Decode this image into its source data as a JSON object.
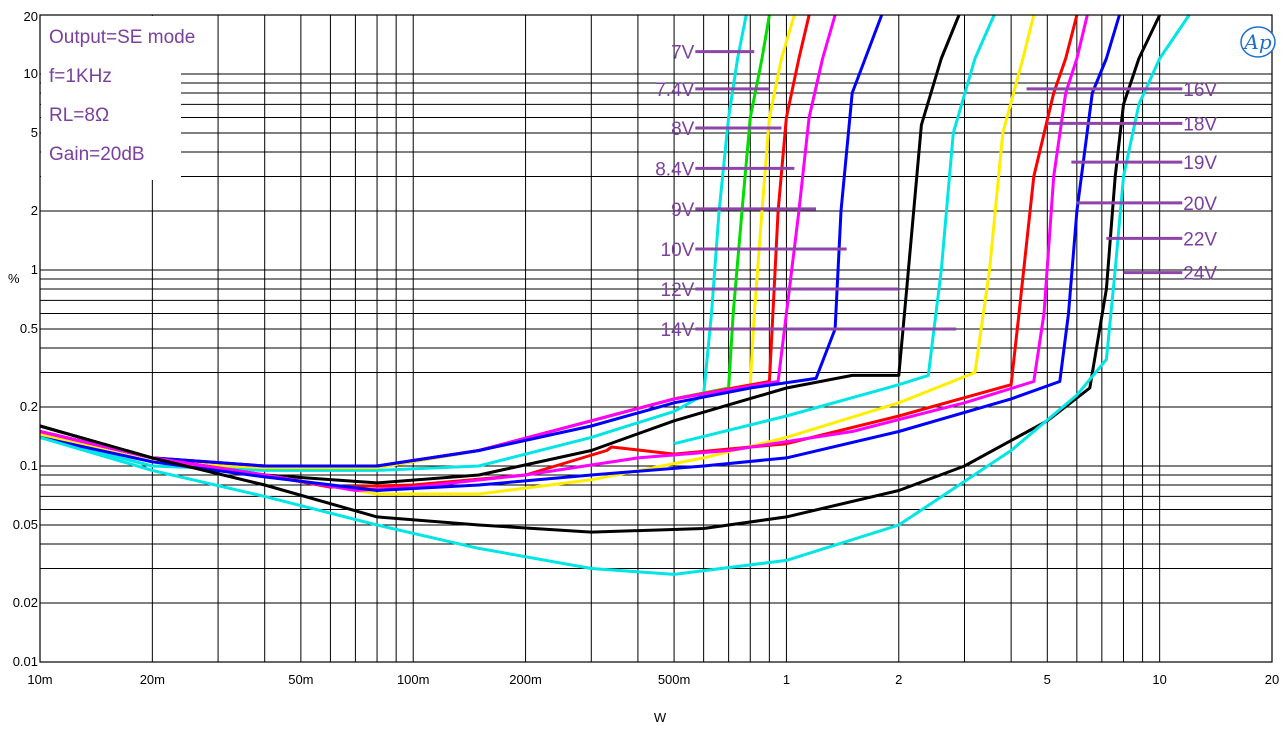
{
  "chart_data": {
    "type": "line",
    "x_scale": "log",
    "y_scale": "log",
    "xlim": [
      0.01,
      20
    ],
    "ylim": [
      0.01,
      20
    ],
    "xlabel": "W",
    "ylabel": "%",
    "grid": true,
    "x_ticks": [
      {
        "v": 0.01,
        "label": "10m"
      },
      {
        "v": 0.02,
        "label": "20m"
      },
      {
        "v": 0.05,
        "label": "50m"
      },
      {
        "v": 0.1,
        "label": "100m"
      },
      {
        "v": 0.2,
        "label": "200m"
      },
      {
        "v": 0.5,
        "label": "500m"
      },
      {
        "v": 1,
        "label": "1"
      },
      {
        "v": 2,
        "label": "2"
      },
      {
        "v": 5,
        "label": "5"
      },
      {
        "v": 10,
        "label": "10"
      },
      {
        "v": 20,
        "label": "20"
      }
    ],
    "y_ticks": [
      {
        "v": 0.01,
        "label": "0.01"
      },
      {
        "v": 0.02,
        "label": "0.02"
      },
      {
        "v": 0.05,
        "label": "0.05"
      },
      {
        "v": 0.1,
        "label": "0.1"
      },
      {
        "v": 0.2,
        "label": "0.2"
      },
      {
        "v": 0.5,
        "label": "0.5"
      },
      {
        "v": 1,
        "label": "1"
      },
      {
        "v": 2,
        "label": "2"
      },
      {
        "v": 5,
        "label": "5"
      },
      {
        "v": 10,
        "label": "10"
      },
      {
        "v": 20,
        "label": "20"
      }
    ],
    "annotations": [
      "Output=SE mode",
      "f=1KHz",
      "RL=8Ω",
      "Gain=20dB"
    ],
    "logo_text": "Ap",
    "voltage_labels": [
      {
        "label": "7V",
        "side": "left",
        "y": 13.0,
        "x_from": 0.57,
        "x_to": 0.82
      },
      {
        "label": "7.4V",
        "side": "left",
        "y": 8.4,
        "x_from": 0.57,
        "x_to": 0.9
      },
      {
        "label": "8V",
        "side": "left",
        "y": 5.3,
        "x_from": 0.57,
        "x_to": 0.97
      },
      {
        "label": "8.4V",
        "side": "left",
        "y": 3.3,
        "x_from": 0.57,
        "x_to": 1.05
      },
      {
        "label": "9V",
        "side": "left",
        "y": 2.05,
        "x_from": 0.57,
        "x_to": 1.2
      },
      {
        "label": "10V",
        "side": "left",
        "y": 1.28,
        "x_from": 0.57,
        "x_to": 1.45
      },
      {
        "label": "12V",
        "side": "left",
        "y": 0.8,
        "x_from": 0.57,
        "x_to": 2.0
      },
      {
        "label": "14V",
        "side": "left",
        "y": 0.5,
        "x_from": 0.57,
        "x_to": 2.85
      },
      {
        "label": "16V",
        "side": "right",
        "y": 8.4,
        "x_from": 4.4,
        "x_to": 11.5
      },
      {
        "label": "18V",
        "side": "right",
        "y": 5.6,
        "x_from": 5.0,
        "x_to": 11.5
      },
      {
        "label": "19V",
        "side": "right",
        "y": 3.55,
        "x_from": 5.8,
        "x_to": 11.5
      },
      {
        "label": "20V",
        "side": "right",
        "y": 2.2,
        "x_from": 6.0,
        "x_to": 11.5
      },
      {
        "label": "22V",
        "side": "right",
        "y": 1.45,
        "x_from": 7.2,
        "x_to": 11.5
      },
      {
        "label": "24V",
        "side": "right",
        "y": 0.97,
        "x_from": 8.0,
        "x_to": 11.5
      }
    ],
    "series": [
      {
        "color": "#00e5e5",
        "points": [
          [
            0.01,
            0.14
          ],
          [
            0.02,
            0.1
          ],
          [
            0.04,
            0.095
          ],
          [
            0.08,
            0.095
          ],
          [
            0.15,
            0.1
          ],
          [
            0.3,
            0.14
          ],
          [
            0.5,
            0.19
          ],
          [
            0.6,
            0.23
          ],
          [
            0.63,
            0.6
          ],
          [
            0.66,
            2
          ],
          [
            0.7,
            6
          ],
          [
            0.74,
            12
          ],
          [
            0.78,
            20
          ]
        ]
      },
      {
        "color": "#00dd00",
        "points": [
          [
            0.01,
            0.145
          ],
          [
            0.02,
            0.105
          ],
          [
            0.04,
            0.098
          ],
          [
            0.08,
            0.098
          ],
          [
            0.15,
            0.12
          ],
          [
            0.3,
            0.17
          ],
          [
            0.5,
            0.22
          ],
          [
            0.7,
            0.25
          ],
          [
            0.72,
            0.6
          ],
          [
            0.76,
            2
          ],
          [
            0.8,
            6
          ],
          [
            0.86,
            12
          ],
          [
            0.9,
            20
          ]
        ]
      },
      {
        "color": "#ffee00",
        "points": [
          [
            0.01,
            0.145
          ],
          [
            0.02,
            0.105
          ],
          [
            0.04,
            0.098
          ],
          [
            0.08,
            0.098
          ],
          [
            0.15,
            0.12
          ],
          [
            0.3,
            0.17
          ],
          [
            0.5,
            0.22
          ],
          [
            0.8,
            0.26
          ],
          [
            0.82,
            0.6
          ],
          [
            0.86,
            2
          ],
          [
            0.9,
            6
          ],
          [
            0.97,
            12
          ],
          [
            1.05,
            20
          ]
        ]
      },
      {
        "color": "#ff0000",
        "points": [
          [
            0.01,
            0.15
          ],
          [
            0.02,
            0.11
          ],
          [
            0.04,
            0.1
          ],
          [
            0.08,
            0.1
          ],
          [
            0.15,
            0.12
          ],
          [
            0.3,
            0.17
          ],
          [
            0.5,
            0.22
          ],
          [
            0.9,
            0.27
          ],
          [
            0.92,
            0.6
          ],
          [
            0.95,
            2
          ],
          [
            1.0,
            6
          ],
          [
            1.08,
            12
          ],
          [
            1.15,
            20
          ]
        ]
      },
      {
        "color": "#ff00ff",
        "points": [
          [
            0.01,
            0.15
          ],
          [
            0.02,
            0.11
          ],
          [
            0.04,
            0.1
          ],
          [
            0.08,
            0.1
          ],
          [
            0.15,
            0.12
          ],
          [
            0.3,
            0.17
          ],
          [
            0.5,
            0.22
          ],
          [
            0.95,
            0.27
          ],
          [
            1.0,
            0.6
          ],
          [
            1.08,
            2
          ],
          [
            1.15,
            6
          ],
          [
            1.25,
            12
          ],
          [
            1.35,
            20
          ]
        ]
      },
      {
        "color": "#0000ff",
        "points": [
          [
            0.01,
            0.15
          ],
          [
            0.02,
            0.11
          ],
          [
            0.04,
            0.1
          ],
          [
            0.08,
            0.1
          ],
          [
            0.15,
            0.12
          ],
          [
            0.3,
            0.16
          ],
          [
            0.5,
            0.21
          ],
          [
            0.8,
            0.25
          ],
          [
            1.2,
            0.28
          ],
          [
            1.35,
            0.5
          ],
          [
            1.4,
            2
          ],
          [
            1.5,
            8
          ],
          [
            1.8,
            20
          ]
        ]
      },
      {
        "color": "#000000",
        "points": [
          [
            0.01,
            0.16
          ],
          [
            0.02,
            0.11
          ],
          [
            0.04,
            0.09
          ],
          [
            0.08,
            0.082
          ],
          [
            0.15,
            0.09
          ],
          [
            0.3,
            0.12
          ],
          [
            0.5,
            0.17
          ],
          [
            1,
            0.25
          ],
          [
            1.5,
            0.29
          ],
          [
            2,
            0.29
          ],
          [
            2.1,
            0.8
          ],
          [
            2.3,
            5.5
          ],
          [
            2.6,
            12
          ],
          [
            2.9,
            20
          ]
        ]
      },
      {
        "color": "#00e5e5",
        "points": [
          [
            0.5,
            0.13
          ],
          [
            1,
            0.18
          ],
          [
            2,
            0.26
          ],
          [
            2.4,
            0.29
          ],
          [
            2.6,
            1
          ],
          [
            2.8,
            5
          ],
          [
            3.2,
            12
          ],
          [
            3.6,
            20
          ]
        ]
      },
      {
        "color": "#ffee00",
        "points": [
          [
            0.01,
            0.145
          ],
          [
            0.02,
            0.105
          ],
          [
            0.04,
            0.09
          ],
          [
            0.08,
            0.072
          ],
          [
            0.15,
            0.072
          ],
          [
            0.3,
            0.085
          ],
          [
            0.6,
            0.11
          ],
          [
            1,
            0.14
          ],
          [
            2,
            0.21
          ],
          [
            3.2,
            0.3
          ],
          [
            3.5,
            1
          ],
          [
            3.8,
            5
          ],
          [
            4.3,
            12
          ],
          [
            4.6,
            20
          ]
        ]
      },
      {
        "color": "#ff0000",
        "points": [
          [
            0.01,
            0.15
          ],
          [
            0.02,
            0.11
          ],
          [
            0.04,
            0.09
          ],
          [
            0.06,
            0.078
          ],
          [
            0.1,
            0.08
          ],
          [
            0.2,
            0.09
          ],
          [
            0.33,
            0.12
          ],
          [
            0.34,
            0.125
          ],
          [
            0.5,
            0.115
          ],
          [
            1,
            0.13
          ],
          [
            2,
            0.18
          ],
          [
            4,
            0.26
          ],
          [
            4.2,
            0.6
          ],
          [
            4.6,
            3
          ],
          [
            5.2,
            8
          ],
          [
            5.6,
            12
          ],
          [
            6.0,
            20
          ]
        ]
      },
      {
        "color": "#ff00ff",
        "points": [
          [
            0.01,
            0.15
          ],
          [
            0.02,
            0.11
          ],
          [
            0.04,
            0.09
          ],
          [
            0.07,
            0.075
          ],
          [
            0.1,
            0.078
          ],
          [
            0.2,
            0.09
          ],
          [
            0.4,
            0.11
          ],
          [
            0.7,
            0.12
          ],
          [
            1.5,
            0.15
          ],
          [
            3,
            0.21
          ],
          [
            4.6,
            0.27
          ],
          [
            4.9,
            0.6
          ],
          [
            5.2,
            3
          ],
          [
            5.6,
            8
          ],
          [
            6.0,
            12
          ],
          [
            6.4,
            20
          ]
        ]
      },
      {
        "color": "#0000ff",
        "points": [
          [
            0.01,
            0.14
          ],
          [
            0.02,
            0.105
          ],
          [
            0.04,
            0.088
          ],
          [
            0.08,
            0.075
          ],
          [
            0.15,
            0.08
          ],
          [
            0.3,
            0.09
          ],
          [
            0.6,
            0.1
          ],
          [
            1,
            0.11
          ],
          [
            2,
            0.15
          ],
          [
            4,
            0.22
          ],
          [
            5.4,
            0.27
          ],
          [
            5.7,
            0.6
          ],
          [
            6.0,
            2
          ],
          [
            6.6,
            8
          ],
          [
            7.2,
            12
          ],
          [
            7.8,
            20
          ]
        ]
      },
      {
        "color": "#000000",
        "points": [
          [
            0.01,
            0.16
          ],
          [
            0.02,
            0.11
          ],
          [
            0.04,
            0.08
          ],
          [
            0.08,
            0.055
          ],
          [
            0.15,
            0.05
          ],
          [
            0.3,
            0.046
          ],
          [
            0.6,
            0.048
          ],
          [
            1,
            0.055
          ],
          [
            2,
            0.075
          ],
          [
            3,
            0.1
          ],
          [
            5,
            0.17
          ],
          [
            6.5,
            0.25
          ],
          [
            7.2,
            0.8
          ],
          [
            7.6,
            3
          ],
          [
            8.0,
            7
          ],
          [
            8.8,
            12
          ],
          [
            10,
            20
          ]
        ]
      },
      {
        "color": "#00e5e5",
        "points": [
          [
            0.01,
            0.14
          ],
          [
            0.02,
            0.095
          ],
          [
            0.04,
            0.07
          ],
          [
            0.08,
            0.05
          ],
          [
            0.15,
            0.038
          ],
          [
            0.3,
            0.03
          ],
          [
            0.5,
            0.028
          ],
          [
            1,
            0.033
          ],
          [
            2,
            0.05
          ],
          [
            4,
            0.12
          ],
          [
            6,
            0.23
          ],
          [
            7.2,
            0.35
          ],
          [
            7.6,
            1
          ],
          [
            8.0,
            3
          ],
          [
            8.8,
            7
          ],
          [
            10,
            12
          ],
          [
            12,
            20
          ]
        ]
      }
    ]
  }
}
